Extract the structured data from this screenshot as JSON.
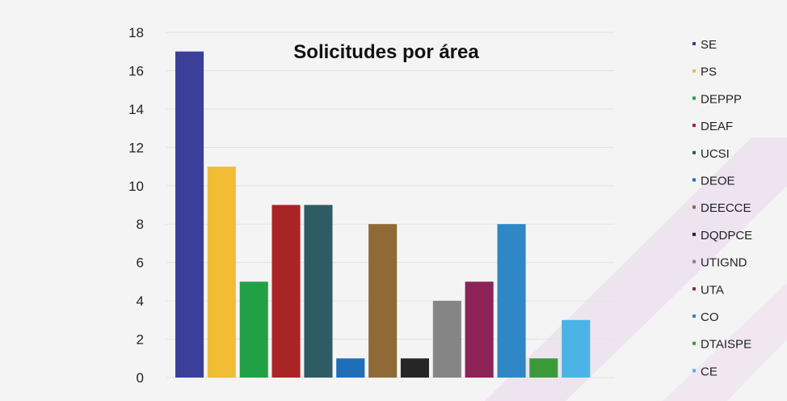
{
  "chart_data": {
    "type": "bar",
    "title": "Solicitudes por área",
    "xlabel": "",
    "ylabel": "",
    "ylim": [
      0,
      18
    ],
    "yticks": [
      0,
      2,
      4,
      6,
      8,
      10,
      12,
      14,
      16,
      18
    ],
    "grid": true,
    "legend_position": "right",
    "categories": [
      "SE",
      "PS",
      "DEPPP",
      "DEAF",
      "UCSI",
      "DEOE",
      "DEECCE",
      "DQDPCE",
      "UTIGND",
      "UTA",
      "CO",
      "DTAISPE",
      "CE"
    ],
    "values": [
      17,
      11,
      5,
      9,
      9,
      1,
      8,
      1,
      4,
      5,
      8,
      1,
      3
    ],
    "colors": [
      "#3b3f99",
      "#f0bd35",
      "#22a046",
      "#aa2426",
      "#2e5b64",
      "#1f6fb8",
      "#8f6a37",
      "#262626",
      "#858585",
      "#8c2357",
      "#2f87c5",
      "#3a9a3a",
      "#4cb3e6"
    ]
  }
}
